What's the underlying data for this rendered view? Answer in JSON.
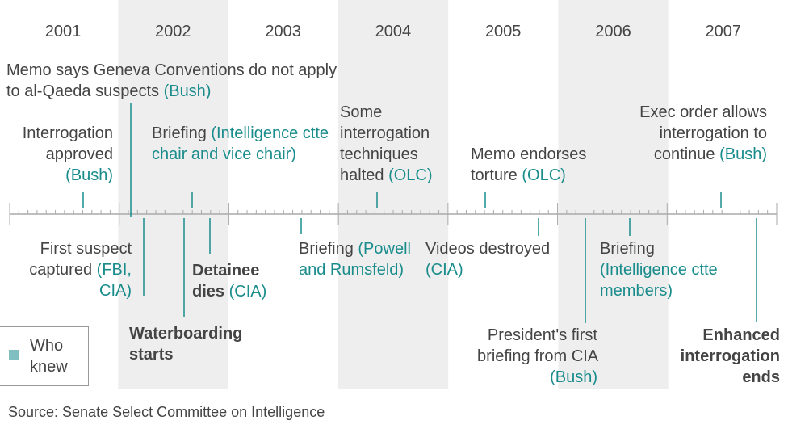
{
  "years": [
    "2001",
    "2002",
    "2003",
    "2004",
    "2005",
    "2006",
    "2007"
  ],
  "events": [
    {
      "text": "Memo says Geneva Conventions do not apply to al-Qaeda suspects",
      "who": "(Bush)"
    },
    {
      "text": "Interrogation approved",
      "who": "(Bush)"
    },
    {
      "text": "Briefing",
      "who": "(Intelligence ctte chair and vice chair)"
    },
    {
      "text": "Some interrogation techniques halted",
      "who": "(OLC)"
    },
    {
      "text": "Memo endorses torture",
      "who": "(OLC)"
    },
    {
      "text": "Exec order allows interrogation to continue",
      "who": "(Bush)"
    },
    {
      "text": "First suspect captured",
      "who": "(FBI, CIA)"
    },
    {
      "text": "Waterboarding starts",
      "bold": true
    },
    {
      "text": "Detainee dies",
      "who": "(CIA)",
      "bold": true
    },
    {
      "text": "Briefing",
      "who": "(Powell and Rumsfeld)"
    },
    {
      "text": "Videos destroyed",
      "who": "(CIA)"
    },
    {
      "text": "President's first briefing from CIA",
      "who": "(Bush)"
    },
    {
      "text": "Briefing",
      "who": "(Intelligence ctte members)"
    },
    {
      "text": "Enhanced interrogation ends",
      "bold": true
    }
  ],
  "legend": "Who knew",
  "source": "Source: Senate Select Committee on Intelligence"
}
